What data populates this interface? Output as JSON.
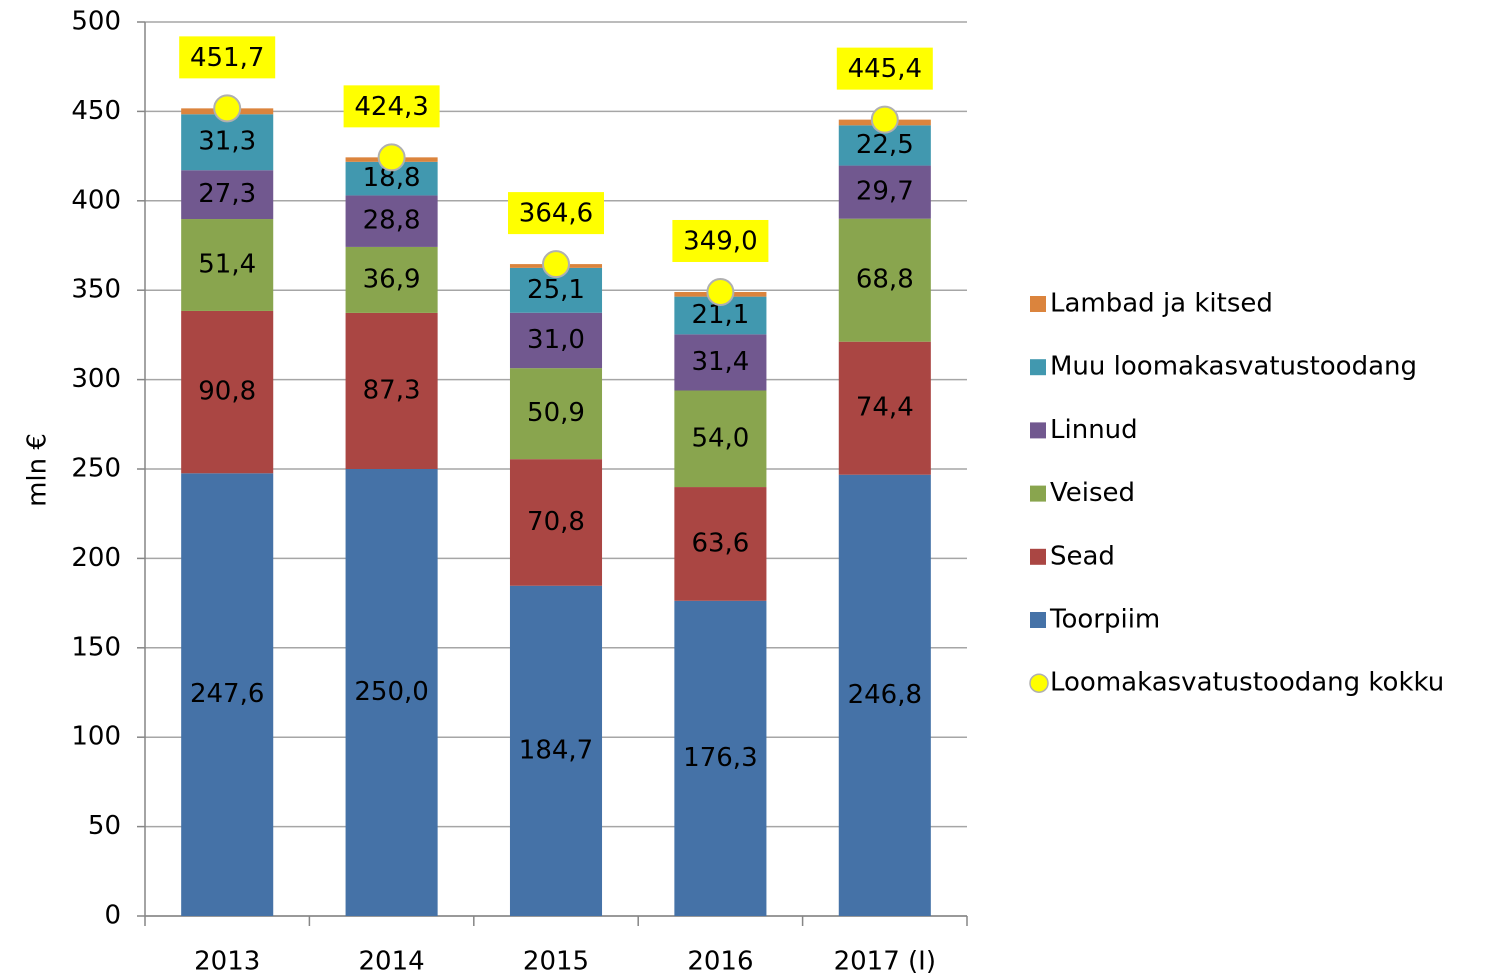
{
  "chart_data": {
    "type": "bar",
    "stacked": true,
    "y_label": "mln €",
    "categories": [
      "2013",
      "2014",
      "2015",
      "2016",
      "2017 (I)"
    ],
    "ylim": [
      0,
      500
    ],
    "yticks": [
      0,
      50,
      100,
      150,
      200,
      250,
      300,
      350,
      400,
      450,
      500
    ],
    "grid": true,
    "legend": "right",
    "series": [
      {
        "name": "Toorpiim",
        "color": "#4572a7",
        "values": [
          247.6,
          250.0,
          184.7,
          176.3,
          246.8
        ],
        "value_labels": [
          "247,6",
          "250,0",
          "184,7",
          "176,3",
          "246,8"
        ]
      },
      {
        "name": "Sead",
        "color": "#aa4643",
        "values": [
          90.8,
          87.3,
          70.8,
          63.6,
          74.4
        ],
        "value_labels": [
          "90,8",
          "87,3",
          "70,8",
          "63,6",
          "74,4"
        ]
      },
      {
        "name": "Veised",
        "color": "#89a54e",
        "values": [
          51.4,
          36.9,
          50.9,
          54.0,
          68.8
        ],
        "value_labels": [
          "51,4",
          "36,9",
          "50,9",
          "54,0",
          "68,8"
        ]
      },
      {
        "name": "Linnud",
        "color": "#71588f",
        "values": [
          27.3,
          28.8,
          31.0,
          31.4,
          29.7
        ],
        "value_labels": [
          "27,3",
          "28,8",
          "31,0",
          "31,4",
          "29,7"
        ]
      },
      {
        "name": "Muu loomakasvatustoodang",
        "color": "#4198af",
        "values": [
          31.3,
          18.8,
          25.1,
          21.1,
          22.5
        ],
        "value_labels": [
          "31,3",
          "18,8",
          "25,1",
          "21,1",
          "22,5"
        ]
      },
      {
        "name": "Lambad ja kitsed",
        "color": "#db843d",
        "values": [
          3.3,
          2.5,
          2.1,
          2.6,
          3.2
        ]
      },
      {
        "name": "Loomakasvatustoodang kokku",
        "type": "point",
        "color": "#ffff00",
        "values": [
          451.7,
          424.3,
          364.6,
          349.0,
          445.4
        ],
        "value_labels": [
          "451,7",
          "424,3",
          "364,6",
          "349,0",
          "445,4"
        ]
      }
    ]
  }
}
